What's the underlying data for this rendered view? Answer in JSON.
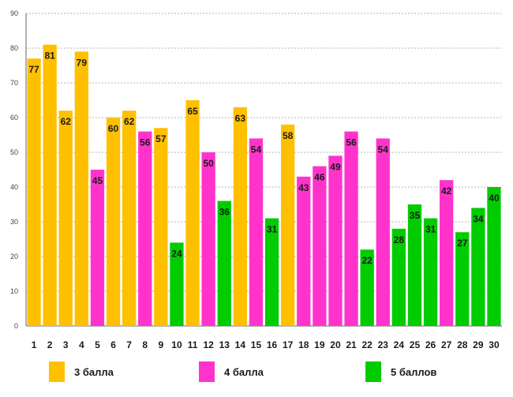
{
  "chart_data": {
    "type": "bar",
    "title": "",
    "xlabel": "",
    "ylabel": "",
    "ylim": [
      0,
      90
    ],
    "ytick_step": 10,
    "grid": true,
    "categories": [
      "1",
      "2",
      "3",
      "4",
      "5",
      "6",
      "7",
      "8",
      "9",
      "10",
      "11",
      "12",
      "13",
      "14",
      "15",
      "16",
      "17",
      "18",
      "19",
      "20",
      "21",
      "22",
      "23",
      "24",
      "25",
      "26",
      "27",
      "28",
      "29",
      "30"
    ],
    "values": [
      77,
      81,
      62,
      79,
      45,
      60,
      62,
      56,
      57,
      24,
      65,
      50,
      36,
      63,
      54,
      31,
      58,
      43,
      46,
      49,
      56,
      22,
      54,
      28,
      35,
      31,
      42,
      27,
      34,
      40
    ],
    "groups": [
      "3",
      "3",
      "3",
      "3",
      "4",
      "3",
      "3",
      "4",
      "3",
      "5",
      "3",
      "4",
      "5",
      "3",
      "4",
      "5",
      "3",
      "4",
      "4",
      "4",
      "4",
      "5",
      "4",
      "5",
      "5",
      "5",
      "4",
      "5",
      "5",
      "5"
    ],
    "legend": [
      {
        "key": "3",
        "label": "3 балла",
        "color": "#FFC000"
      },
      {
        "key": "4",
        "label": "4 балла",
        "color": "#FF33CC"
      },
      {
        "key": "5",
        "label": "5 баллов",
        "color": "#00CC00"
      }
    ],
    "legend_position": "bottom"
  }
}
